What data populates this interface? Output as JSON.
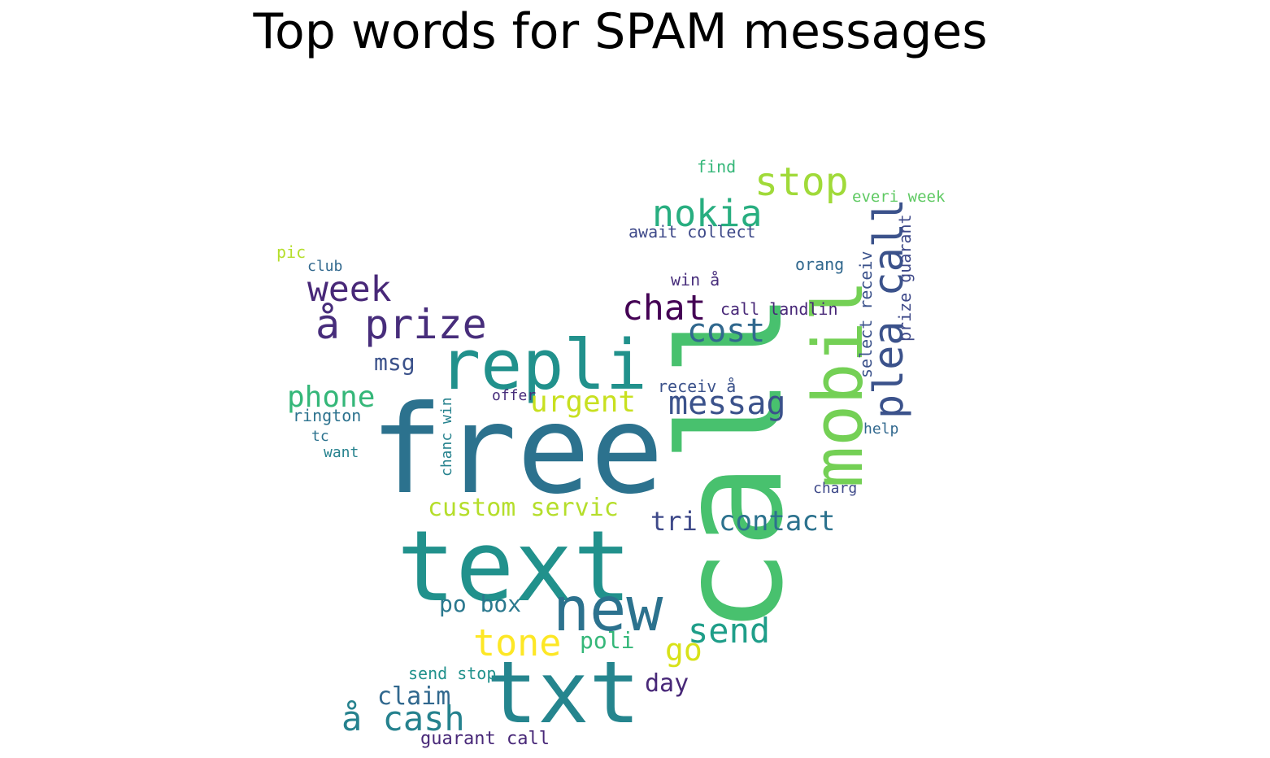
{
  "title": "Top words for SPAM messages",
  "colormap": [
    "#440154",
    "#482878",
    "#3e4989",
    "#31688e",
    "#26828e",
    "#1f9e89",
    "#35b779",
    "#6ece58",
    "#b5de2b",
    "#fde725"
  ],
  "words": [
    {
      "text": "free",
      "weight": 1.0,
      "color": "#2c728e"
    },
    {
      "text": "call",
      "weight": 1.0,
      "color": "#48c16e"
    },
    {
      "text": "mobil",
      "weight": 0.78,
      "color": "#74d055"
    },
    {
      "text": "text",
      "weight": 0.9,
      "color": "#21918c"
    },
    {
      "text": "txt",
      "weight": 0.7,
      "color": "#25858e"
    },
    {
      "text": "repli",
      "weight": 0.55,
      "color": "#21918c"
    },
    {
      "text": "new",
      "weight": 0.5,
      "color": "#2c728e"
    },
    {
      "text": "plea call",
      "weight": 0.5,
      "color": "#3b528b"
    },
    {
      "text": "å prize",
      "weight": 0.4,
      "color": "#472d7b"
    },
    {
      "text": "stop",
      "weight": 0.4,
      "color": "#a0da39"
    },
    {
      "text": "nokia",
      "weight": 0.38,
      "color": "#28ae80"
    },
    {
      "text": "week",
      "weight": 0.36,
      "color": "#482878"
    },
    {
      "text": "chat",
      "weight": 0.36,
      "color": "#440154"
    },
    {
      "text": "messag",
      "weight": 0.32,
      "color": "#3b528b"
    },
    {
      "text": "cost",
      "weight": 0.32,
      "color": "#31688e"
    },
    {
      "text": "send",
      "weight": 0.34,
      "color": "#1f9e89"
    },
    {
      "text": "tone",
      "weight": 0.36,
      "color": "#fde725"
    },
    {
      "text": "å cash",
      "weight": 0.36,
      "color": "#26828e"
    },
    {
      "text": "urgent",
      "weight": 0.3,
      "color": "#c8e020"
    },
    {
      "text": "phone",
      "weight": 0.3,
      "color": "#35b779"
    },
    {
      "text": "contact",
      "weight": 0.28,
      "color": "#2c728e"
    },
    {
      "text": "go",
      "weight": 0.32,
      "color": "#d8e219"
    },
    {
      "text": "claim",
      "weight": 0.26,
      "color": "#31688e"
    },
    {
      "text": "custom servic",
      "weight": 0.25,
      "color": "#b5de2b"
    },
    {
      "text": "po box",
      "weight": 0.24,
      "color": "#2a788e"
    },
    {
      "text": "poli",
      "weight": 0.24,
      "color": "#35b779"
    },
    {
      "text": "day",
      "weight": 0.25,
      "color": "#482878"
    },
    {
      "text": "tri",
      "weight": 0.26,
      "color": "#3e4989"
    },
    {
      "text": "msg",
      "weight": 0.22,
      "color": "#3b528b"
    },
    {
      "text": "prize guarant",
      "weight": 0.18,
      "color": "#3e4989"
    },
    {
      "text": "select receiv",
      "weight": 0.16,
      "color": "#3b528b"
    },
    {
      "text": "guarant call",
      "weight": 0.18,
      "color": "#482878"
    },
    {
      "text": "send stop",
      "weight": 0.16,
      "color": "#21918c"
    },
    {
      "text": "call landlin",
      "weight": 0.16,
      "color": "#482878"
    },
    {
      "text": "await collect",
      "weight": 0.15,
      "color": "#3e4989"
    },
    {
      "text": "everi week",
      "weight": 0.15,
      "color": "#5ec962"
    },
    {
      "text": "receiv å",
      "weight": 0.16,
      "color": "#3b528b"
    },
    {
      "text": "win å",
      "weight": 0.16,
      "color": "#472d7b"
    },
    {
      "text": "orang",
      "weight": 0.15,
      "color": "#31688e"
    },
    {
      "text": "rington",
      "weight": 0.15,
      "color": "#2c728e"
    },
    {
      "text": "chanc win",
      "weight": 0.15,
      "color": "#26828e"
    },
    {
      "text": "find",
      "weight": 0.14,
      "color": "#35b779"
    },
    {
      "text": "help",
      "weight": 0.14,
      "color": "#31688e"
    },
    {
      "text": "charg",
      "weight": 0.14,
      "color": "#3e4989"
    },
    {
      "text": "club",
      "weight": 0.13,
      "color": "#31688e"
    },
    {
      "text": "want",
      "weight": 0.13,
      "color": "#26828e"
    },
    {
      "text": "offer",
      "weight": 0.13,
      "color": "#472d7b"
    },
    {
      "text": "tc",
      "weight": 0.13,
      "color": "#2c728e"
    },
    {
      "text": "pic",
      "weight": 0.13,
      "color": "#b5de2b"
    }
  ]
}
